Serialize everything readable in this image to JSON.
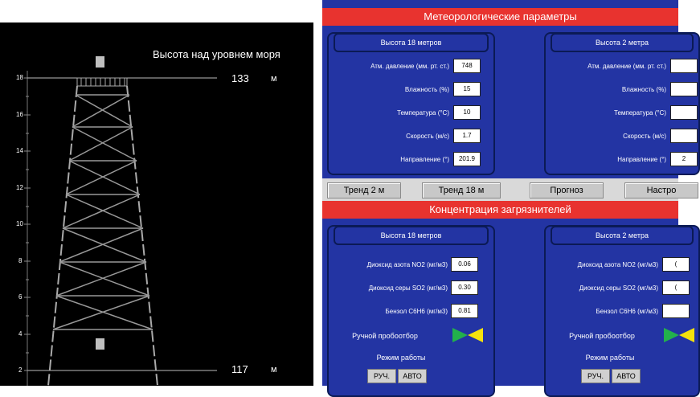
{
  "left": {
    "sea_level_title": "Высота над уровнем моря",
    "top_height": "133",
    "bottom_height": "117",
    "unit": "м",
    "axis_ticks": [
      "18",
      "16",
      "14",
      "12",
      "10",
      "8",
      "6",
      "4",
      "2"
    ]
  },
  "met": {
    "title": "Метеорологические параметры",
    "panel18": {
      "title": "Высота 18 метров",
      "rows": [
        {
          "label": "Атм. давление (мм. рт. ст.)",
          "value": "748"
        },
        {
          "label": "Влажность (%)",
          "value": "15"
        },
        {
          "label": "Температура (°С)",
          "value": "10"
        },
        {
          "label": "Скорость (м/с)",
          "value": "1.7"
        },
        {
          "label": "Направление (°)",
          "value": "201.9"
        }
      ]
    },
    "panel2": {
      "title": "Высота 2 метра",
      "rows": [
        {
          "label": "Атм. давление (мм. рт. ст.)",
          "value": ""
        },
        {
          "label": "Влажность (%)",
          "value": ""
        },
        {
          "label": "Температура (°С)",
          "value": ""
        },
        {
          "label": "Скорость (м/с)",
          "value": ""
        },
        {
          "label": "Направление (°)",
          "value": "2"
        }
      ]
    }
  },
  "buttons": {
    "trend2": "Тренд 2 м",
    "trend18": "Тренд 18 м",
    "forecast": "Прогноз",
    "settings": "Настро"
  },
  "pollut": {
    "title": "Концентрация загрязнителей",
    "panel18": {
      "title": "Высота 18 метров",
      "rows": [
        {
          "label": "Диоксид азота NO2 (мг/м3)",
          "value": "0.06"
        },
        {
          "label": "Диоксид серы SO2 (мг/м3)",
          "value": "0.30"
        },
        {
          "label": "Бензол С6Н6 (мг/м3)",
          "value": "0.81"
        }
      ],
      "manual_label": "Ручной пробоотбор",
      "mode_label": "Режим работы",
      "mode_manual": "РУЧ.",
      "mode_auto": "АВТО"
    },
    "panel2": {
      "title": "Высота 2 метра",
      "rows": [
        {
          "label": "Диоксид азота NO2 (мг/м3)",
          "value": "("
        },
        {
          "label": "Диоксид серы SO2 (мг/м3)",
          "value": "("
        },
        {
          "label": "Бензол С6Н6 (мг/м3)",
          "value": ""
        }
      ],
      "manual_label": "Ручной пробоотбор",
      "mode_label": "Режим работы",
      "mode_manual": "РУЧ.",
      "mode_auto": "АВТО"
    }
  },
  "colors": {
    "panel_bg": "#2334a3",
    "header_red": "#e8332f",
    "valve_green": "#22b14c",
    "valve_yellow": "#f4e20c"
  }
}
